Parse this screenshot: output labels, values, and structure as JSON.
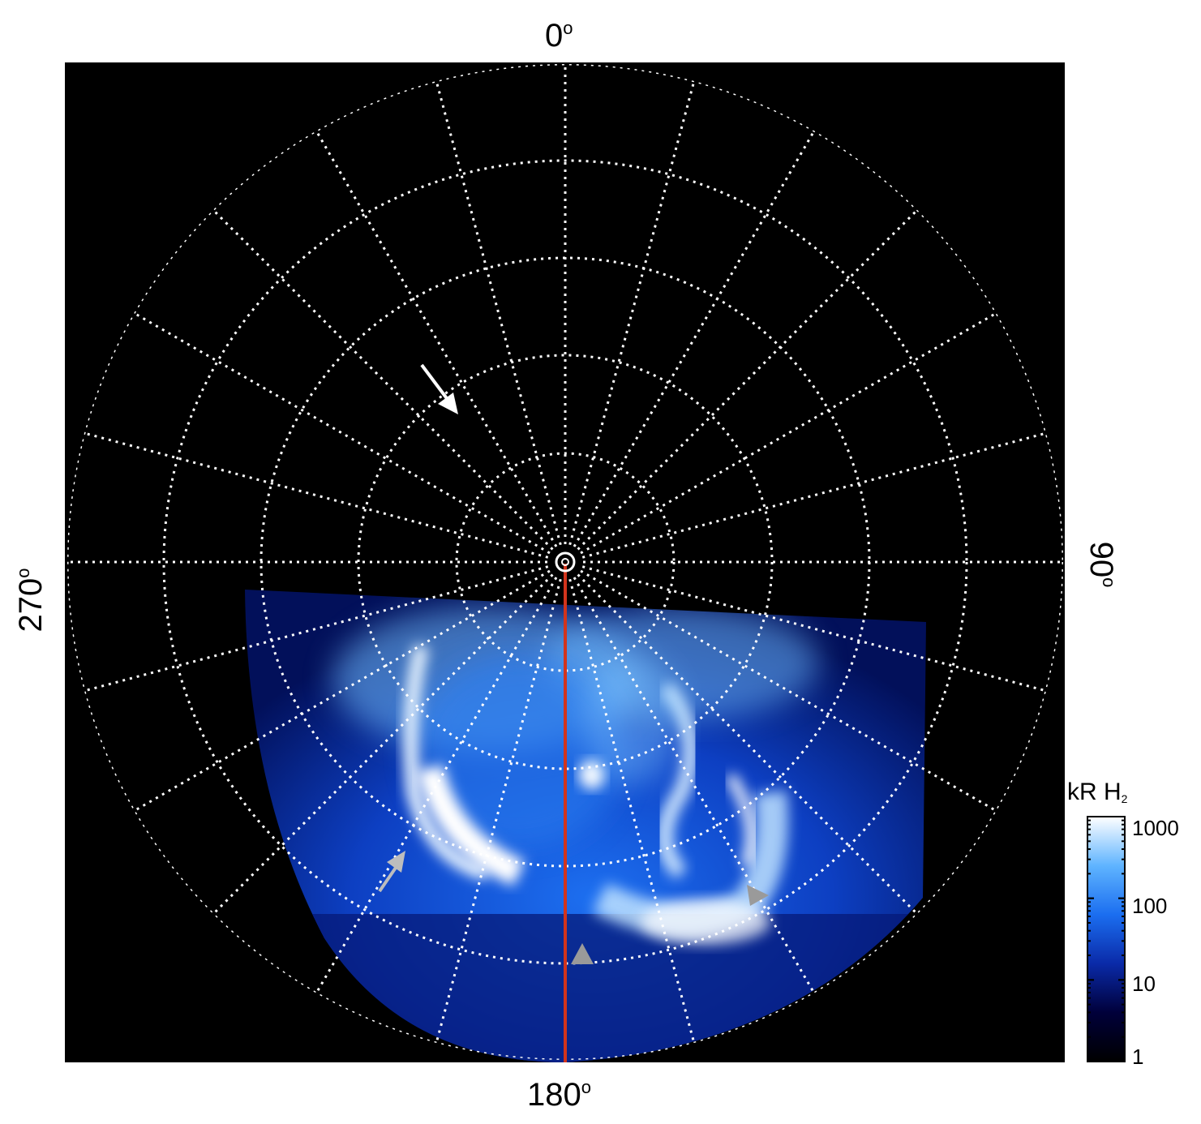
{
  "longitude_labels": {
    "top": "0",
    "right": "90",
    "bottom": "180",
    "left": "270",
    "degree_mark": "o"
  },
  "colorbar": {
    "title": "kR H",
    "title_subscript": "2",
    "scale": "log",
    "range": [
      1,
      1000
    ],
    "ticks": [
      "1000",
      "100",
      "10",
      "1"
    ],
    "colors": [
      "#000000",
      "#00003a",
      "#0a2aa8",
      "#1b6ef0",
      "#5fb4ff",
      "#ffffff"
    ]
  },
  "map": {
    "background_color": "#000000",
    "grid_color": "#ffffff",
    "meridian_line_color": "#d2341c",
    "meridian_spacing_deg": 15,
    "arrows": [
      {
        "name": "white-arrow",
        "color": "#ffffff"
      },
      {
        "name": "gray-arrow-left",
        "color": "#bdbdbd"
      },
      {
        "name": "gray-arrow-bottom",
        "color": "#9a9a9a"
      },
      {
        "name": "gray-arrow-right",
        "color": "#9a9a9a"
      }
    ]
  }
}
